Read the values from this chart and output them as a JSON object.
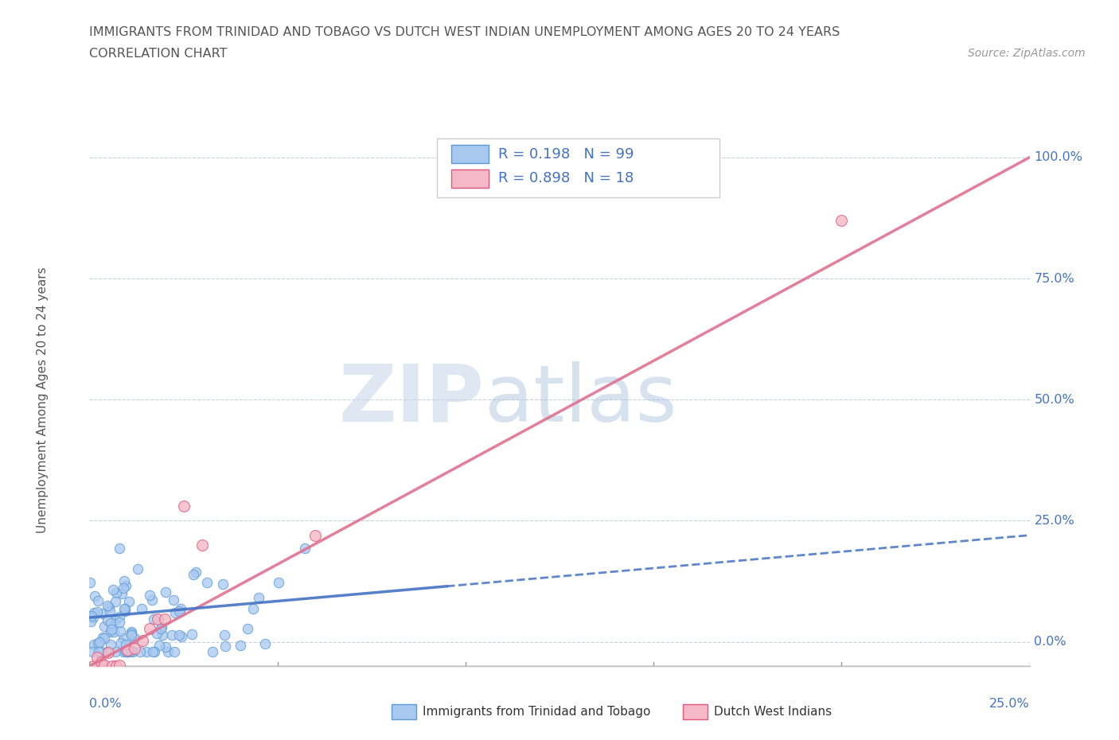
{
  "title_line1": "IMMIGRANTS FROM TRINIDAD AND TOBAGO VS DUTCH WEST INDIAN UNEMPLOYMENT AMONG AGES 20 TO 24 YEARS",
  "title_line2": "CORRELATION CHART",
  "source_text": "Source: ZipAtlas.com",
  "ylabel": "Unemployment Among Ages 20 to 24 years",
  "legend_label_blue": "Immigrants from Trinidad and Tobago",
  "legend_label_pink": "Dutch West Indians",
  "R_blue": 0.198,
  "N_blue": 99,
  "R_pink": 0.898,
  "N_pink": 18,
  "blue_color": "#A8C8F0",
  "blue_edge": "#5B9BD5",
  "pink_color": "#F4B8C8",
  "pink_edge": "#E05878",
  "blue_line_color": "#4472C4",
  "pink_line_color": "#E07090",
  "watermark_zip": "#C8D8EC",
  "watermark_atlas": "#A8C4E8",
  "grid_color": "#C8D0DC",
  "title_color": "#555555",
  "axis_label_color": "#4472C4",
  "xlim": [
    0.0,
    0.25
  ],
  "ylim": [
    -0.05,
    1.05
  ],
  "ytick_vals": [
    0.0,
    0.25,
    0.5,
    0.75,
    1.0
  ],
  "ytick_labels": [
    "0.0%",
    "25.0%",
    "50.0%",
    "75.0%",
    "100.0%"
  ],
  "xtick_vals": [
    0.0,
    0.05,
    0.1,
    0.15,
    0.2,
    0.25
  ],
  "xtick_labels": [
    "0.0%",
    "",
    "",
    "",
    "",
    "25.0%"
  ]
}
